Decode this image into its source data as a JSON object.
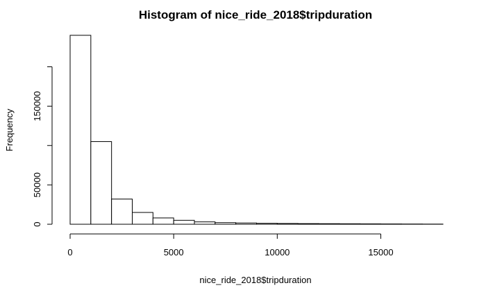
{
  "chart_data": {
    "type": "bar",
    "title": "Histogram of nice_ride_2018$tripduration",
    "xlabel": "nice_ride_2018$tripduration",
    "ylabel": "Frequency",
    "bins": [
      [
        0,
        1000
      ],
      [
        1000,
        2000
      ],
      [
        2000,
        3000
      ],
      [
        3000,
        4000
      ],
      [
        4000,
        5000
      ],
      [
        5000,
        6000
      ],
      [
        6000,
        7000
      ],
      [
        7000,
        8000
      ],
      [
        8000,
        9000
      ],
      [
        9000,
        10000
      ],
      [
        10000,
        11000
      ],
      [
        11000,
        12000
      ],
      [
        12000,
        13000
      ],
      [
        13000,
        14000
      ],
      [
        14000,
        15000
      ],
      [
        15000,
        16000
      ],
      [
        16000,
        17000
      ],
      [
        17000,
        18000
      ]
    ],
    "values": [
      240000,
      105000,
      32000,
      15000,
      8000,
      5000,
      3000,
      2000,
      1600,
      1200,
      1000,
      800,
      700,
      600,
      500,
      400,
      300,
      200
    ],
    "xticks": [
      0,
      5000,
      10000,
      15000
    ],
    "yticks": [
      0,
      50000,
      150000
    ],
    "ytick_marks": [
      0,
      50000,
      100000,
      150000,
      200000
    ],
    "xlim": [
      0,
      18000
    ],
    "ylim": [
      0,
      240000
    ],
    "grid": false,
    "legend": "none",
    "colors": {
      "bar_fill": "#ffffff",
      "bar_stroke": "#000000",
      "axis": "#000000",
      "text": "#000000"
    }
  }
}
